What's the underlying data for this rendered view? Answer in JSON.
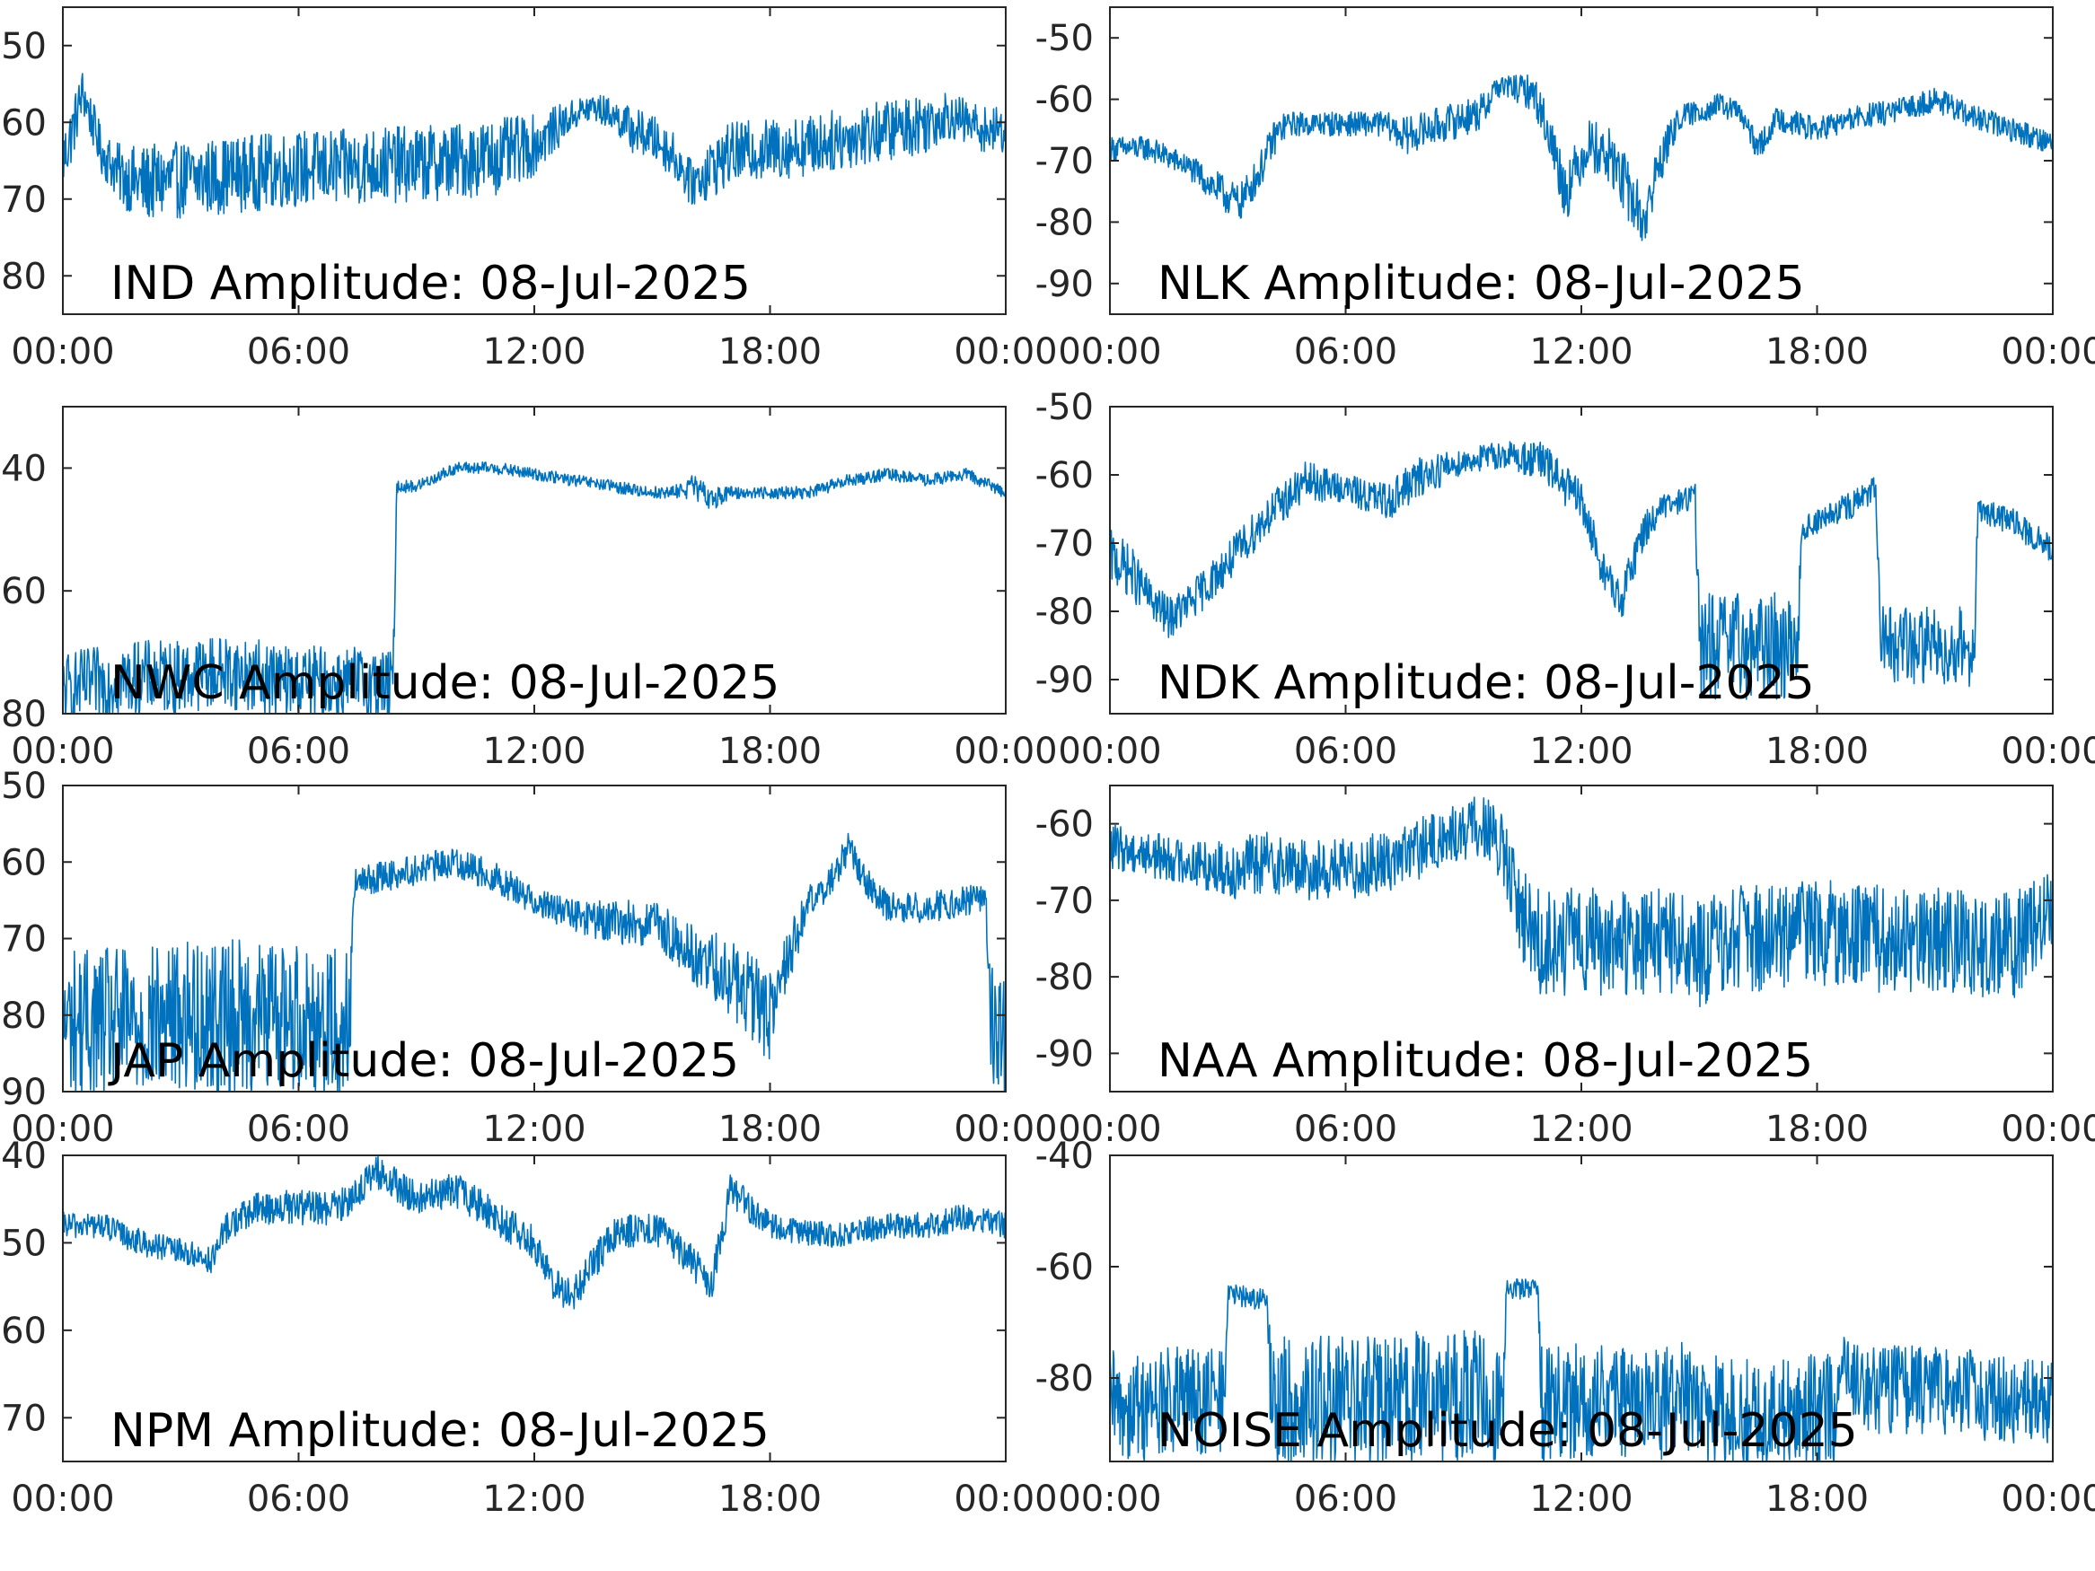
{
  "figure": {
    "trace_color": "#0072BD",
    "axis_color": "#262626"
  },
  "chart_data": [
    {
      "type": "line",
      "id": "ind",
      "title": "IND Amplitude: 08-Jul-2025",
      "ylim": [
        -85,
        -45
      ],
      "yticks": [
        -50,
        -60,
        -70,
        -80
      ],
      "ytick_labels": [
        "50",
        "60",
        "70",
        "80"
      ],
      "xlim": [
        0,
        24
      ],
      "xtick_values": [
        0,
        6,
        12,
        18,
        24
      ],
      "xtick_labels": [
        "00:00",
        "06:00",
        "12:00",
        "18:00",
        "00:00"
      ],
      "series": [
        {
          "x": [
            0,
            0.25,
            0.5,
            0.75,
            1.0,
            1.5,
            2,
            3,
            4,
            5,
            6,
            7,
            8,
            9,
            10,
            11,
            12,
            12.5,
            13,
            13.5,
            14,
            14.5,
            15,
            15.5,
            16,
            16.5,
            17,
            18,
            19,
            20,
            21,
            22,
            22.5,
            23,
            23.5,
            24
          ],
          "values": [
            -65,
            -61,
            -56,
            -60,
            -64,
            -67,
            -68,
            -67.5,
            -67,
            -66.5,
            -66,
            -66,
            -65.5,
            -65.5,
            -65,
            -64.5,
            -63,
            -61,
            -59,
            -58,
            -59,
            -61,
            -62,
            -64,
            -68,
            -66,
            -64,
            -63.5,
            -63,
            -62,
            -61,
            -60,
            -59,
            -60,
            -61,
            -61
          ],
          "noise": [
            4,
            4,
            3,
            3,
            3,
            4,
            5,
            5,
            5,
            5,
            5,
            5,
            5,
            5,
            5,
            5,
            4,
            3,
            2,
            2,
            2,
            3,
            3,
            3,
            3,
            4,
            4,
            4,
            4,
            4,
            4,
            4,
            3,
            3,
            3,
            3
          ]
        }
      ]
    },
    {
      "type": "line",
      "id": "nlk",
      "title": "NLK Amplitude: 08-Jul-2025",
      "ylim": [
        -95,
        -45
      ],
      "yticks": [
        -50,
        -60,
        -70,
        -80,
        -90
      ],
      "ytick_labels": [
        "-50",
        "-60",
        "-70",
        "-80",
        "-90"
      ],
      "xlim": [
        0,
        24
      ],
      "xtick_values": [
        0,
        6,
        12,
        18,
        24
      ],
      "xtick_labels": [
        "00:00",
        "06:00",
        "12:00",
        "18:00",
        "00:00"
      ],
      "series": [
        {
          "x": [
            0,
            1,
            2,
            2.8,
            3.3,
            3.8,
            4.2,
            4.5,
            5,
            6,
            7,
            7.5,
            8,
            9,
            9.5,
            9.8,
            10.2,
            10.8,
            11.2,
            11.6,
            12.2,
            12.8,
            13.2,
            13.6,
            14,
            14.5,
            15,
            15.5,
            16,
            16.5,
            17,
            17.5,
            18,
            19,
            20,
            21,
            22,
            23,
            24
          ],
          "values": [
            -68,
            -68,
            -71,
            -75,
            -77,
            -72,
            -66,
            -64,
            -64,
            -64,
            -64,
            -66,
            -65,
            -63,
            -62,
            -58,
            -58,
            -59,
            -66,
            -75,
            -67,
            -70,
            -75,
            -80,
            -70,
            -63,
            -62,
            -61,
            -62,
            -68,
            -63,
            -64,
            -65,
            -63,
            -62,
            -60,
            -63,
            -65,
            -67
          ],
          "noise": [
            2,
            2,
            2,
            3,
            3,
            3,
            3,
            2,
            2,
            2,
            2,
            3,
            3,
            3,
            3,
            2,
            2,
            3,
            4,
            5,
            4,
            5,
            5,
            5,
            4,
            2,
            2,
            2,
            2,
            2,
            2,
            2,
            2,
            2,
            2,
            2,
            2,
            2,
            2
          ]
        }
      ]
    },
    {
      "type": "line",
      "id": "nwc",
      "title": "NWC Amplitude: 08-Jul-2025",
      "ylim": [
        -80,
        -30
      ],
      "yticks": [
        -40,
        -60,
        -80
      ],
      "ytick_labels": [
        "40",
        "60",
        "80"
      ],
      "xlim": [
        0,
        24
      ],
      "xtick_values": [
        0,
        6,
        12,
        18,
        24
      ],
      "xtick_labels": [
        "00:00",
        "06:00",
        "12:00",
        "18:00",
        "00:00"
      ],
      "series": [
        {
          "x": [
            0,
            1,
            2,
            3,
            4,
            5,
            6,
            7,
            8,
            8.4,
            8.5,
            9,
            10,
            11,
            12,
            13,
            14,
            15,
            15.5,
            16,
            16.5,
            17,
            18,
            19,
            20,
            21,
            22,
            23,
            24
          ],
          "values": [
            -76,
            -75,
            -74,
            -74,
            -73,
            -74,
            -75,
            -75,
            -75,
            -76,
            -43,
            -43,
            -40,
            -40,
            -41,
            -42,
            -43,
            -44,
            -44,
            -43,
            -45,
            -44,
            -44,
            -44,
            -42,
            -41,
            -42,
            -41,
            -44
          ],
          "noise": [
            6,
            6,
            6,
            6,
            6,
            6,
            6,
            6,
            6,
            6,
            1,
            1,
            1,
            1,
            1,
            1,
            1,
            1,
            1,
            2,
            2,
            1,
            1,
            1,
            1,
            1,
            1,
            1,
            1
          ]
        }
      ]
    },
    {
      "type": "line",
      "id": "ndk",
      "title": "NDK Amplitude: 08-Jul-2025",
      "ylim": [
        -95,
        -50
      ],
      "yticks": [
        -50,
        -60,
        -70,
        -80,
        -90
      ],
      "ytick_labels": [
        "-50",
        "-60",
        "-70",
        "-80",
        "-90"
      ],
      "xlim": [
        0,
        24
      ],
      "xtick_values": [
        0,
        6,
        12,
        18,
        24
      ],
      "xtick_labels": [
        "00:00",
        "06:00",
        "12:00",
        "18:00",
        "00:00"
      ],
      "series": [
        {
          "x": [
            0,
            0.5,
            1,
            1.5,
            2,
            3,
            4,
            5,
            6,
            7,
            8,
            9,
            10,
            11,
            12,
            12.5,
            13,
            13.5,
            14,
            14.9,
            15.0,
            16,
            17,
            17.5,
            17.6,
            18,
            19,
            19.5,
            19.6,
            20,
            21,
            22,
            22.1,
            23,
            24
          ],
          "values": [
            -72,
            -74,
            -78,
            -81,
            -79,
            -73,
            -66,
            -61,
            -62,
            -64,
            -60,
            -58,
            -57,
            -58,
            -64,
            -73,
            -79,
            -69,
            -65,
            -63,
            -85,
            -85,
            -85,
            -85,
            -68,
            -67,
            -64,
            -62,
            -85,
            -85,
            -85,
            -85,
            -65,
            -67,
            -71
          ],
          "noise": [
            4,
            4,
            3,
            3,
            3,
            3,
            3,
            3,
            2,
            3,
            3,
            2,
            2,
            3,
            3,
            3,
            3,
            3,
            2,
            2,
            8,
            8,
            8,
            8,
            2,
            2,
            2,
            2,
            6,
            6,
            6,
            6,
            2,
            2,
            2
          ]
        }
      ]
    },
    {
      "type": "line",
      "id": "jap",
      "title": "JAP Amplitude: 08-Jul-2025",
      "ylim": [
        -90,
        -50
      ],
      "yticks": [
        -50,
        -60,
        -70,
        -80,
        -90
      ],
      "ytick_labels": [
        "50",
        "60",
        "70",
        "80",
        "90"
      ],
      "xlim": [
        0,
        24
      ],
      "xtick_values": [
        0,
        6,
        12,
        18,
        24
      ],
      "xtick_labels": [
        "00:00",
        "06:00",
        "12:00",
        "18:00",
        "00:00"
      ],
      "series": [
        {
          "x": [
            0,
            1,
            2,
            3,
            4,
            5,
            6,
            7,
            7.3,
            7.4,
            8,
            9,
            10,
            11,
            12,
            13,
            14,
            15,
            16,
            17,
            17.5,
            18,
            18.5,
            19,
            19.5,
            20,
            20.5,
            21,
            22,
            23,
            23.5,
            23.6,
            24
          ],
          "values": [
            -81,
            -81,
            -81,
            -80,
            -80,
            -80,
            -80,
            -81,
            -81,
            -63,
            -62,
            -61,
            -60,
            -62,
            -65,
            -67,
            -68,
            -68,
            -72,
            -75,
            -78,
            -80,
            -72,
            -65,
            -63,
            -58,
            -63,
            -66,
            -66,
            -65,
            -65,
            -80,
            -84
          ],
          "noise": [
            10,
            10,
            10,
            10,
            10,
            10,
            10,
            10,
            10,
            2,
            2,
            2,
            2,
            2,
            2,
            2,
            3,
            3,
            4,
            5,
            6,
            6,
            4,
            2,
            2,
            2,
            2,
            2,
            2,
            2,
            2,
            8,
            8
          ]
        }
      ]
    },
    {
      "type": "line",
      "id": "naa",
      "title": "NAA Amplitude: 08-Jul-2025",
      "ylim": [
        -95,
        -55
      ],
      "yticks": [
        -60,
        -70,
        -80,
        -90
      ],
      "ytick_labels": [
        "-60",
        "-70",
        "-80",
        "-90"
      ],
      "xlim": [
        0,
        24
      ],
      "xtick_values": [
        0,
        6,
        12,
        18,
        24
      ],
      "xtick_labels": [
        "00:00",
        "06:00",
        "12:00",
        "18:00",
        "00:00"
      ],
      "series": [
        {
          "x": [
            0,
            1,
            2,
            3,
            4,
            5,
            6,
            7,
            8,
            9,
            9.5,
            10,
            10.5,
            11,
            12,
            13,
            14,
            15,
            16,
            17,
            18,
            19,
            20,
            21,
            22,
            23,
            24
          ],
          "values": [
            -63,
            -64,
            -65,
            -66,
            -65,
            -66,
            -66,
            -65,
            -63,
            -61,
            -60,
            -64,
            -72,
            -76,
            -75,
            -76,
            -75,
            -77,
            -75,
            -75,
            -74,
            -75,
            -75,
            -75,
            -76,
            -76,
            -71
          ],
          "noise": [
            3,
            3,
            3,
            4,
            4,
            4,
            4,
            4,
            4,
            4,
            4,
            5,
            6,
            7,
            7,
            7,
            7,
            7,
            7,
            7,
            7,
            7,
            7,
            7,
            7,
            7,
            5
          ]
        }
      ]
    },
    {
      "type": "line",
      "id": "npm",
      "title": "NPM Amplitude: 08-Jul-2025",
      "ylim": [
        -75,
        -40
      ],
      "yticks": [
        -40,
        -50,
        -60,
        -70
      ],
      "ytick_labels": [
        "40",
        "50",
        "60",
        "70"
      ],
      "xlim": [
        0,
        24
      ],
      "xtick_values": [
        0,
        6,
        12,
        18,
        24
      ],
      "xtick_labels": [
        "00:00",
        "06:00",
        "12:00",
        "18:00",
        "00:00"
      ],
      "series": [
        {
          "x": [
            0,
            1,
            2,
            3,
            3.8,
            4.2,
            5,
            6,
            7,
            7.5,
            8,
            9,
            10,
            11,
            12,
            12.5,
            13,
            14,
            15,
            16,
            16.5,
            17,
            18,
            19,
            20,
            21,
            22,
            23,
            24
          ],
          "values": [
            -48,
            -48,
            -50,
            -51,
            -52,
            -48,
            -46,
            -46,
            -46,
            -44,
            -42,
            -45,
            -44,
            -47,
            -50,
            -55,
            -56,
            -49,
            -48,
            -52,
            -55,
            -44,
            -48,
            -49,
            -49,
            -48,
            -48,
            -47,
            -48
          ],
          "noise": [
            1.5,
            1.5,
            1.5,
            1.5,
            1.5,
            2,
            2,
            2,
            2,
            2,
            2,
            2,
            2,
            2,
            2,
            2,
            2,
            2,
            2,
            2,
            2,
            2,
            1.5,
            1.5,
            1.5,
            1.5,
            1.5,
            1.5,
            1.5
          ]
        }
      ]
    },
    {
      "type": "line",
      "id": "noise",
      "title": "NOISE Amplitude: 08-Jul-2025",
      "ylim": [
        -95,
        -40
      ],
      "yticks": [
        -40,
        -60,
        -80
      ],
      "ytick_labels": [
        "-40",
        "-60",
        "-80"
      ],
      "xlim": [
        0,
        24
      ],
      "xtick_values": [
        0,
        6,
        12,
        18,
        24
      ],
      "xtick_labels": [
        "00:00",
        "06:00",
        "12:00",
        "18:00",
        "00:00"
      ],
      "series": [
        {
          "x": [
            0,
            1,
            2,
            2.9,
            3.0,
            4.0,
            4.1,
            5,
            6,
            7,
            8,
            9,
            10,
            10.1,
            10.9,
            11,
            12,
            13,
            14,
            14.5,
            15,
            16,
            17,
            18,
            18.5,
            18.6,
            19,
            20,
            21,
            22,
            23,
            24
          ],
          "values": [
            -85,
            -85,
            -84,
            -84,
            -65,
            -66,
            -85,
            -84,
            -84,
            -84,
            -83,
            -83,
            -83,
            -64,
            -64,
            -84,
            -84,
            -84,
            -85,
            -83,
            -86,
            -86,
            -86,
            -85,
            -86,
            -76,
            -82,
            -82,
            -82,
            -83,
            -84,
            -85
          ],
          "noise": [
            10,
            10,
            10,
            10,
            2,
            2,
            12,
            12,
            12,
            12,
            12,
            12,
            12,
            2,
            2,
            12,
            10,
            10,
            10,
            10,
            10,
            10,
            10,
            10,
            10,
            4,
            8,
            8,
            8,
            8,
            8,
            8
          ]
        }
      ]
    }
  ]
}
